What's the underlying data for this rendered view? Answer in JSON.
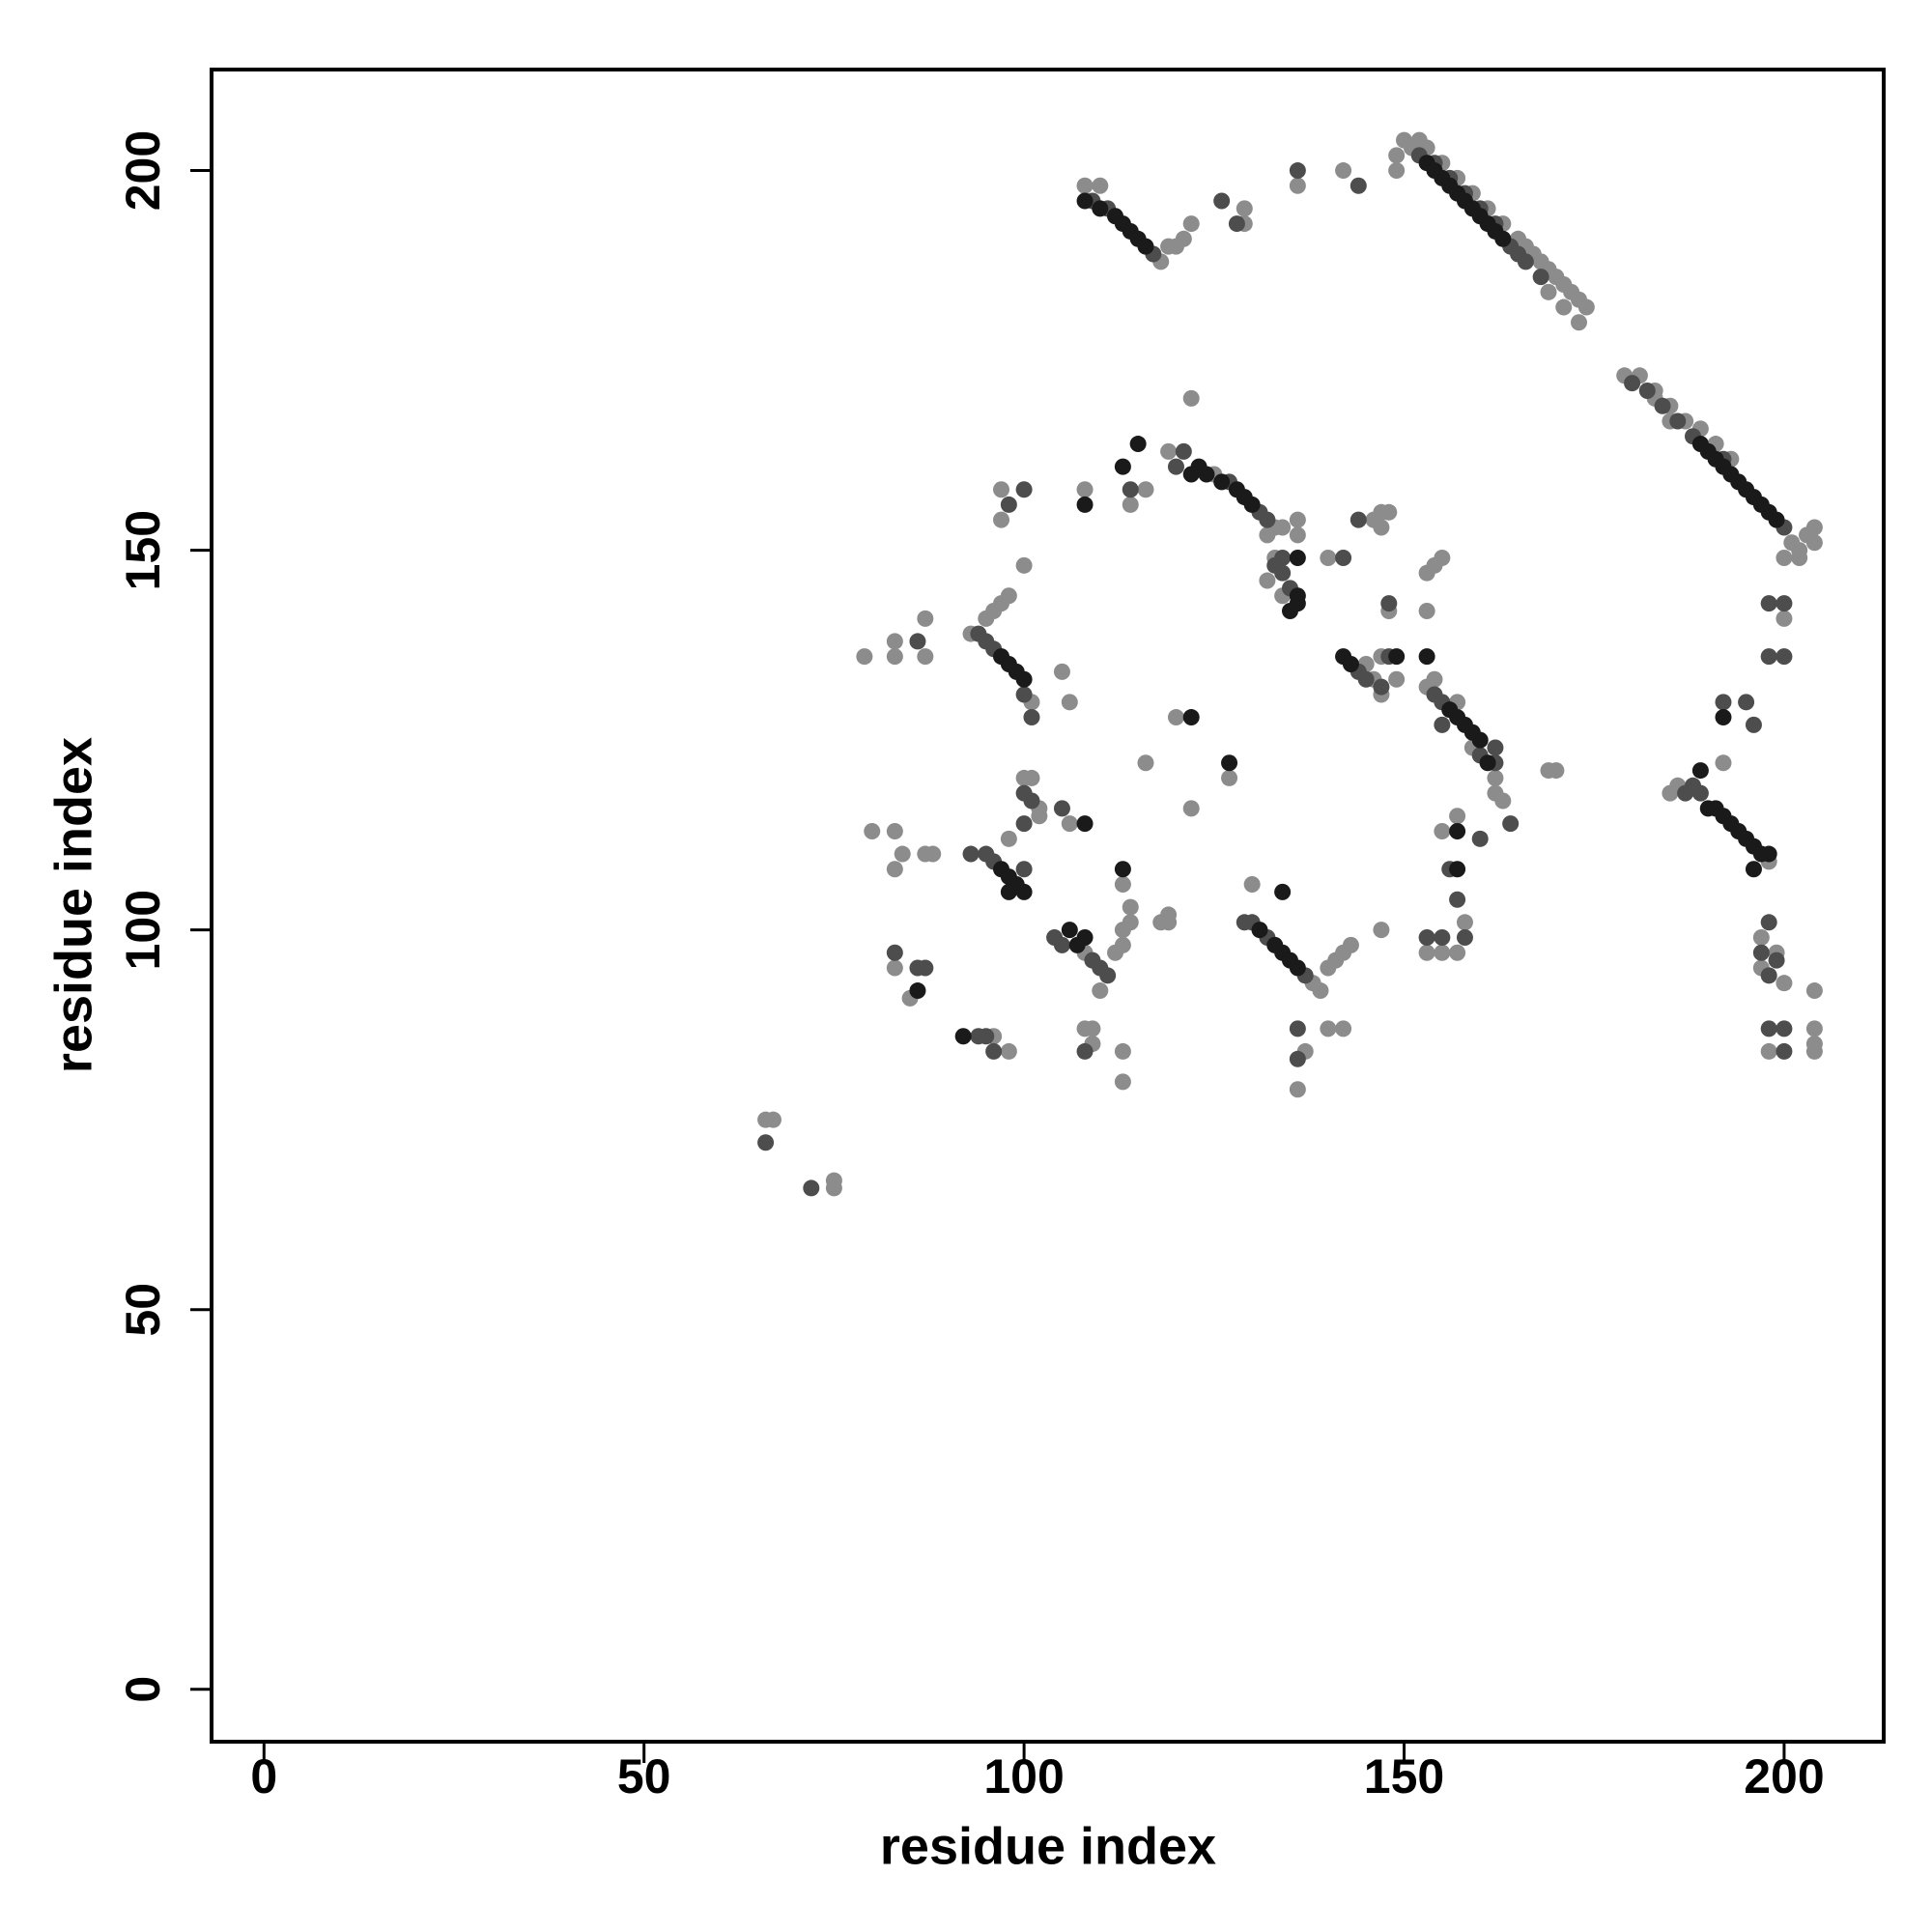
{
  "chart_data": {
    "type": "scatter",
    "xlabel": "residue index",
    "ylabel": "residue index",
    "xlim": [
      -6.9,
      213.1
    ],
    "ylim": [
      -6.9,
      213.3
    ],
    "xticks": [
      0,
      50,
      100,
      150,
      200
    ],
    "yticks": [
      0,
      50,
      100,
      150,
      200
    ],
    "grid": false,
    "series": [
      {
        "color": "#8c8c8c",
        "x": [
          151,
          150,
          152,
          153,
          155,
          157,
          159,
          161,
          163,
          165,
          166,
          167,
          168,
          169,
          170,
          171,
          172,
          173,
          174,
          169,
          171,
          173,
          149,
          149,
          142,
          179,
          181,
          183,
          185,
          187,
          189,
          185,
          183,
          191,
          193,
          201,
          202,
          203,
          204,
          204,
          200,
          202,
          118,
          119,
          120,
          121,
          122,
          129,
          129,
          136,
          108,
          110,
          119,
          125,
          132,
          133,
          134,
          136,
          136,
          133,
          132,
          134,
          108,
          114,
          116,
          122,
          97,
          97,
          100,
          93,
          95,
          96,
          97,
          98,
          87,
          87,
          83,
          83,
          79,
          101,
          146,
          147,
          149,
          147,
          145,
          153,
          154,
          157,
          162,
          159,
          185,
          186,
          192,
          198,
          87,
          88,
          80,
          83,
          84,
          83,
          100,
          101,
          102,
          98,
          106,
          102,
          110,
          112,
          108,
          113,
          114,
          113,
          114,
          113,
          118,
          119,
          119,
          138,
          139,
          140,
          141,
          142,
          143,
          130,
          147,
          83,
          85,
          96,
          98,
          108,
          109,
          109,
          113,
          113,
          137,
          136,
          140,
          142,
          66,
          67,
          75,
          75,
          153,
          155,
          157,
          158,
          155,
          157,
          169,
          163,
          162,
          153,
          153,
          154,
          155,
          148,
          140,
          146,
          147,
          148,
          147,
          197,
          199,
          200,
          198,
          197,
          204,
          204,
          204,
          204,
          200,
          120,
          127,
          116,
          122,
          106,
          105,
          170
        ],
        "values": [
          203,
          204,
          204,
          203,
          201,
          199,
          197,
          195,
          193,
          191,
          190,
          189,
          188,
          187,
          186,
          185,
          184,
          183,
          182,
          184,
          182,
          180,
          202,
          200,
          200,
          173,
          173,
          171,
          169,
          167,
          166,
          167,
          170,
          164,
          162,
          151,
          150,
          152,
          151,
          153,
          149,
          149,
          188,
          190,
          190,
          191,
          193,
          195,
          193,
          198,
          198,
          198,
          163,
          160,
          152,
          153,
          153,
          154,
          152,
          149,
          146,
          144,
          158,
          156,
          158,
          170,
          158,
          154,
          148,
          139,
          141,
          142,
          143,
          144,
          141,
          136,
          138,
          136,
          136,
          130,
          133,
          131,
          133,
          136,
          135,
          132,
          133,
          130,
          120,
          124,
          118,
          119,
          122,
          109,
          110,
          110,
          113,
          113,
          110,
          108,
          120,
          120,
          116,
          112,
          114,
          115,
          92,
          97,
          97,
          106,
          103,
          100,
          101,
          98,
          101,
          102,
          101,
          93,
          92,
          95,
          96,
          97,
          98,
          106,
          100,
          95,
          91,
          86,
          84,
          87,
          87,
          85,
          84,
          80,
          84,
          79,
          87,
          87,
          75,
          75,
          67,
          66,
          97,
          97,
          97,
          101,
          113,
          115,
          121,
          117,
          118,
          142,
          147,
          148,
          149,
          142,
          149,
          154,
          155,
          155,
          153,
          95,
          97,
          93,
          84,
          99,
          92,
          87,
          85,
          84,
          141,
          128,
          120,
          122,
          116,
          130,
          134,
          121
        ]
      },
      {
        "color": "#4d4d4d",
        "x": [
          152,
          154,
          156,
          158,
          160,
          162,
          164,
          165,
          166,
          168,
          180,
          182,
          184,
          186,
          188,
          192,
          200,
          109,
          111,
          117,
          126,
          128,
          136,
          144,
          120,
          121,
          127,
          131,
          132,
          133,
          134,
          135,
          134,
          94,
          95,
          96,
          100,
          101,
          86,
          144,
          145,
          147,
          148,
          154,
          155,
          160,
          162,
          162,
          155,
          187,
          188,
          189,
          192,
          195,
          196,
          93,
          95,
          96,
          100,
          100,
          101,
          100,
          105,
          104,
          105,
          109,
          110,
          111,
          129,
          130,
          132,
          137,
          83,
          86,
          87,
          94,
          95,
          96,
          108,
          136,
          136,
          66,
          72,
          153,
          155,
          158,
          157,
          156,
          160,
          164,
          148,
          142,
          144,
          100,
          98,
          114,
          197,
          198,
          199,
          198,
          198,
          200,
          200,
          198,
          200,
          198,
          200
        ],
        "values": [
          202,
          201,
          199,
          197,
          195,
          193,
          190,
          189,
          188,
          186,
          172,
          171,
          169,
          167,
          165,
          162,
          153,
          196,
          195,
          189,
          196,
          193,
          200,
          198,
          161,
          163,
          159,
          155,
          154,
          148,
          147,
          145,
          149,
          139,
          138,
          137,
          131,
          128,
          138,
          134,
          133,
          132,
          136,
          131,
          130,
          123,
          122,
          124,
          127,
          118,
          119,
          118,
          130,
          130,
          127,
          110,
          110,
          109,
          108,
          118,
          117,
          114,
          116,
          99,
          98,
          96,
          95,
          94,
          101,
          101,
          99,
          94,
          97,
          95,
          95,
          86,
          86,
          84,
          84,
          87,
          83,
          72,
          66,
          99,
          99,
          99,
          104,
          108,
          112,
          114,
          143,
          149,
          154,
          158,
          156,
          158,
          97,
          94,
          96,
          101,
          87,
          87,
          84,
          136,
          136,
          143,
          143
        ]
      },
      {
        "color": "#1a1a1a",
        "x": [
          153,
          154,
          155,
          156,
          157,
          158,
          159,
          160,
          161,
          162,
          163,
          189,
          190,
          191,
          192,
          193,
          194,
          195,
          196,
          197,
          198,
          199,
          108,
          110,
          112,
          113,
          114,
          115,
          116,
          122,
          123,
          124,
          126,
          128,
          129,
          130,
          136,
          136,
          135,
          136,
          97,
          98,
          99,
          100,
          142,
          143,
          149,
          153,
          156,
          157,
          158,
          159,
          160,
          161,
          190,
          191,
          192,
          193,
          194,
          195,
          196,
          197,
          198,
          196,
          97,
          98,
          99,
          100,
          98,
          106,
          107,
          108,
          108,
          131,
          133,
          134,
          135,
          136,
          134,
          115,
          113,
          108,
          122,
          127,
          113,
          86,
          92,
          157,
          157,
          189,
          192
        ],
        "values": [
          201,
          200,
          199,
          198,
          197,
          196,
          195,
          194,
          193,
          192,
          191,
          164,
          163,
          162,
          161,
          160,
          159,
          158,
          157,
          156,
          155,
          154,
          196,
          195,
          194,
          193,
          192,
          191,
          190,
          160,
          161,
          160,
          159,
          158,
          157,
          156,
          144,
          143,
          142,
          149,
          136,
          135,
          134,
          133,
          136,
          135,
          136,
          136,
          129,
          128,
          127,
          126,
          125,
          122,
          116,
          116,
          115,
          114,
          113,
          112,
          111,
          110,
          110,
          108,
          108,
          107,
          106,
          105,
          105,
          100,
          98,
          99,
          114,
          100,
          98,
          97,
          96,
          95,
          105,
          164,
          161,
          156,
          128,
          122,
          108,
          92,
          86,
          108,
          113,
          121,
          128
        ]
      }
    ]
  }
}
